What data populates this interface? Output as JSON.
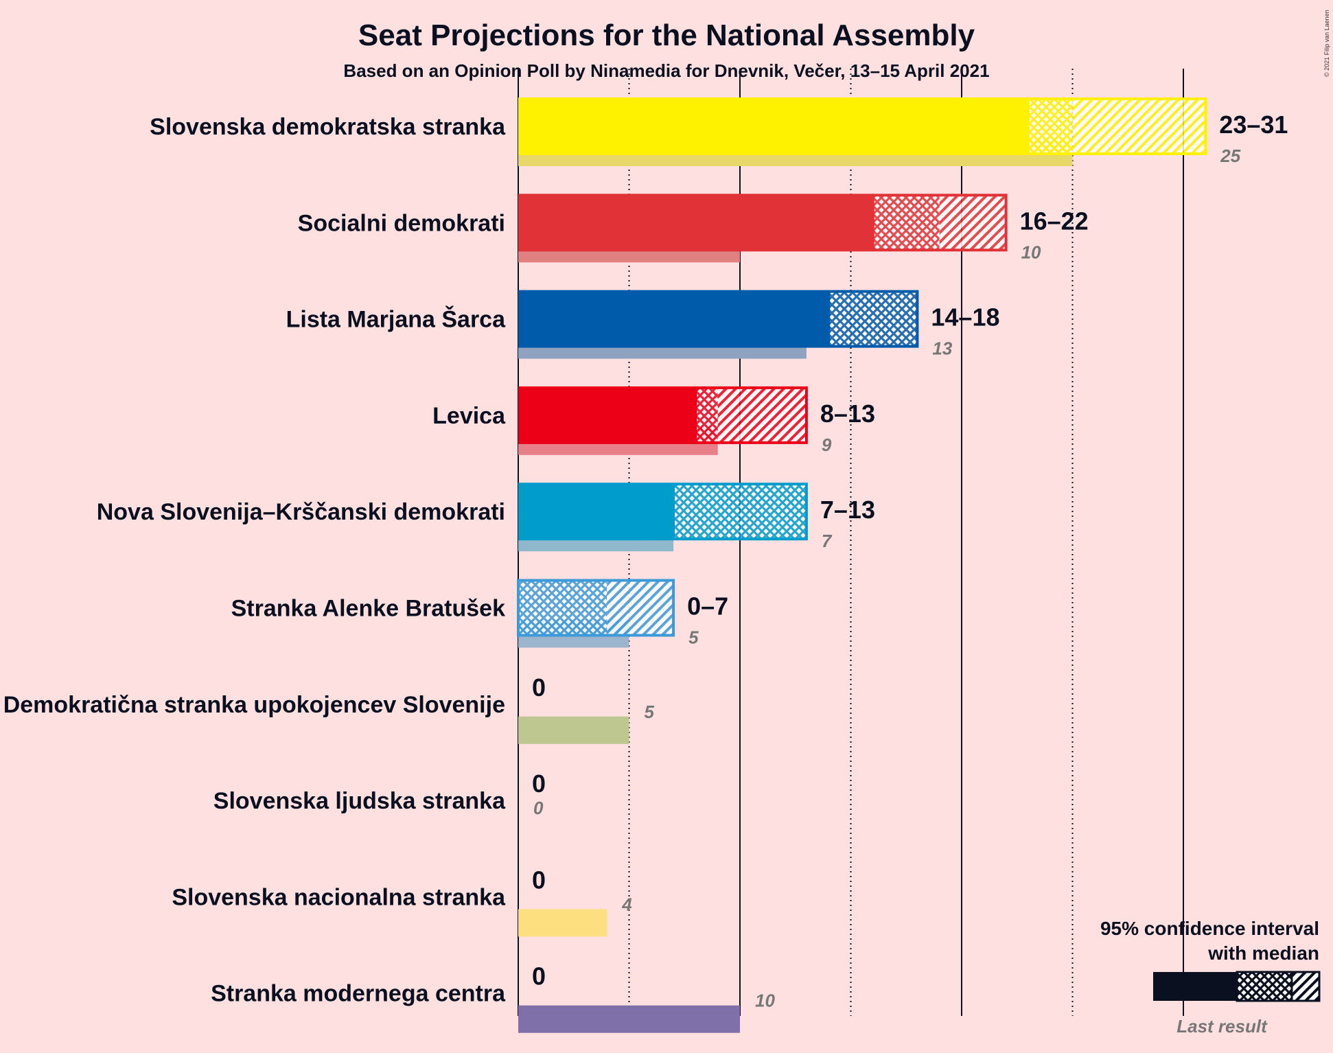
{
  "title": "Seat Projections for the National Assembly",
  "subtitle": "Based on an Opinion Poll by Ninamedia for Dnevnik, Večer, 13–15 April 2021",
  "copyright": "© 2021 Filip van Laenen",
  "legend": {
    "line1": "95% confidence interval",
    "line2": "with median",
    "last_result": "Last result"
  },
  "chart_data": {
    "type": "bar",
    "orientation": "horizontal",
    "x_range": [
      0,
      33
    ],
    "gridlines_solid": [
      0,
      10,
      20,
      30
    ],
    "gridlines_dotted": [
      5,
      15,
      25
    ],
    "parties": [
      {
        "name": "Slovenska demokratska stranka",
        "low": 23,
        "median": 25,
        "high": 31,
        "range_label": "23–31",
        "last_result": 25,
        "last_label": "25",
        "color": "#FFF200",
        "last_color": "#E8D86A"
      },
      {
        "name": "Socialni demokrati",
        "low": 16,
        "median": 19,
        "high": 22,
        "range_label": "16–22",
        "last_result": 10,
        "last_label": "10",
        "color": "#E03237",
        "last_color": "#E08080"
      },
      {
        "name": "Lista Marjana Šarca",
        "low": 14,
        "median": 18,
        "high": 18,
        "range_label": "14–18",
        "last_result": 13,
        "last_label": "13",
        "color": "#005BAA",
        "last_color": "#8FA3C0"
      },
      {
        "name": "Levica",
        "low": 8,
        "median": 9,
        "high": 13,
        "range_label": "8–13",
        "last_result": 9,
        "last_label": "9",
        "color": "#EC0018",
        "last_color": "#E8808A"
      },
      {
        "name": "Nova Slovenija–Krščanski demokrati",
        "low": 7,
        "median": 13,
        "high": 13,
        "range_label": "7–13",
        "last_result": 7,
        "last_label": "7",
        "color": "#009CCB",
        "last_color": "#8FB8CC"
      },
      {
        "name": "Stranka Alenke Bratušek",
        "low": 0,
        "median": 4,
        "high": 7,
        "range_label": "0–7",
        "last_result": 5,
        "last_label": "5",
        "color": "#3C9AD9",
        "last_color": "#9CB4CC"
      },
      {
        "name": "Demokratična stranka upokojencev Slovenije",
        "low": 0,
        "median": 0,
        "high": 0,
        "range_label": "0",
        "last_result": 5,
        "last_label": "5",
        "color": "#A0B84A",
        "last_color": "#BFC790"
      },
      {
        "name": "Slovenska ljudska stranka",
        "low": 0,
        "median": 0,
        "high": 0,
        "range_label": "0",
        "last_result": 0,
        "last_label": "0",
        "color": "#00A651",
        "last_color": "#90C090"
      },
      {
        "name": "Slovenska nacionalna stranka",
        "low": 0,
        "median": 0,
        "high": 0,
        "range_label": "0",
        "last_result": 4,
        "last_label": "4",
        "color": "#FFE070",
        "last_color": "#FDDF80"
      },
      {
        "name": "Stranka modernega centra",
        "low": 0,
        "median": 0,
        "high": 0,
        "range_label": "0",
        "last_result": 10,
        "last_label": "10",
        "color": "#5A4A9A",
        "last_color": "#8070AA"
      }
    ]
  }
}
